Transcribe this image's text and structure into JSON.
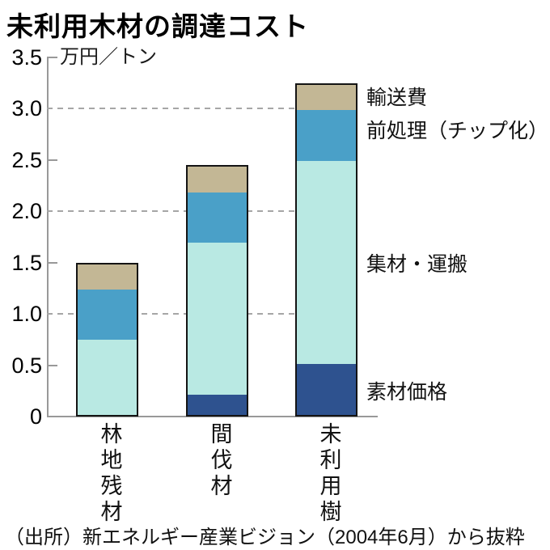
{
  "title": "未利用木材の調達コスト",
  "y_axis": {
    "unit_label": "万円／トン",
    "tick_labels": [
      "0",
      "0.5",
      "1.0",
      "1.5",
      "2.0",
      "2.5",
      "3.0",
      "3.5"
    ]
  },
  "source_note": "（出所）新エネルギー産業ビジョン（2004年6月）から抜粋",
  "colors": {
    "axis": "#999999",
    "gridline": "#a6a6a6",
    "bar_border": "#141414",
    "material_price": "#2e528f",
    "collection_transport": "#b9e9e3",
    "preprocessing": "#4aa0c8",
    "shipping": "#c3b795"
  },
  "chart_data": {
    "type": "bar",
    "stacked": true,
    "title": "未利用木材の調達コスト",
    "ylabel": "万円／トン",
    "ylim": [
      0,
      3.5
    ],
    "yticks": [
      0,
      0.5,
      1,
      1.5,
      2,
      2.5,
      3,
      3.5
    ],
    "gridlines_dashed_at": [
      1,
      2,
      3
    ],
    "grid": "dashed horizontal at 1.0, 2.0, 3.0",
    "legend_position": "right of last bar, aligned to segment midpoints",
    "categories": [
      "林地残材",
      "間伐材",
      "未利用樹"
    ],
    "series": [
      {
        "name": "素材価格",
        "color": "#2e528f",
        "values": [
          0,
          0.2,
          0.5
        ]
      },
      {
        "name": "集材・運搬",
        "color": "#b9e9e3",
        "values": [
          0.75,
          1.5,
          2.0
        ]
      },
      {
        "name": "前処理（チップ化）",
        "color": "#4aa0c8",
        "values": [
          0.5,
          0.5,
          0.5
        ]
      },
      {
        "name": "輸送費",
        "color": "#c3b795",
        "values": [
          0.25,
          0.25,
          0.25
        ]
      }
    ],
    "totals": [
      1.5,
      2.45,
      3.25
    ]
  }
}
